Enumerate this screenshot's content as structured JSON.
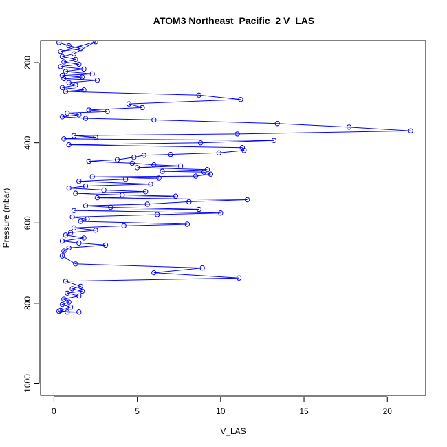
{
  "chart_data": {
    "type": "scatter",
    "title": "ATOM3 Northeast_Pacific_2 V_LAS",
    "xlabel": "V_LAS",
    "ylabel": "Pressure (mbar)",
    "xlim": [
      -0.8,
      22.3
    ],
    "ylim": [
      1030,
      145
    ],
    "y_reversed": true,
    "x_ticks": [
      0,
      5,
      10,
      15,
      20
    ],
    "y_ticks": [
      200,
      400,
      600,
      800,
      1000
    ],
    "grid": false,
    "point_style": "open-circle-with-connecting-line",
    "color": "#0000ff",
    "series": [
      {
        "values": [
          [
            0.3,
            150
          ],
          [
            0.9,
            158
          ],
          [
            1.6,
            165
          ],
          [
            0.4,
            172
          ],
          [
            2.5,
            148
          ],
          [
            1.2,
            178
          ],
          [
            0.5,
            185
          ],
          [
            1.3,
            192
          ],
          [
            0.6,
            198
          ],
          [
            1.5,
            204
          ],
          [
            0.4,
            210
          ],
          [
            1.8,
            216
          ],
          [
            0.7,
            222
          ],
          [
            2.3,
            228
          ],
          [
            0.5,
            232
          ],
          [
            1.7,
            236
          ],
          [
            0.6,
            240
          ],
          [
            2.6,
            244
          ],
          [
            0.9,
            250
          ],
          [
            1.3,
            256
          ],
          [
            0.5,
            262
          ],
          [
            1.8,
            268
          ],
          [
            0.7,
            272
          ],
          [
            8.7,
            281
          ],
          [
            11.2,
            292
          ],
          [
            4.5,
            303
          ],
          [
            5.3,
            312
          ],
          [
            2.1,
            318
          ],
          [
            3.2,
            322
          ],
          [
            0.8,
            326
          ],
          [
            1.5,
            330
          ],
          [
            0.5,
            335
          ],
          [
            1.9,
            339
          ],
          [
            6.0,
            343
          ],
          [
            13.4,
            352
          ],
          [
            17.7,
            361
          ],
          [
            21.4,
            370
          ],
          [
            11.0,
            378
          ],
          [
            1.2,
            382
          ],
          [
            2.5,
            386
          ],
          [
            0.6,
            390
          ],
          [
            13.2,
            394
          ],
          [
            8.8,
            400
          ],
          [
            0.9,
            405
          ],
          [
            11.3,
            412
          ],
          [
            11.4,
            419
          ],
          [
            9.9,
            425
          ],
          [
            7.0,
            429
          ],
          [
            5.4,
            431
          ],
          [
            4.8,
            436
          ],
          [
            3.8,
            442
          ],
          [
            2.1,
            446
          ],
          [
            4.7,
            451
          ],
          [
            6.0,
            455
          ],
          [
            7.6,
            458
          ],
          [
            5.0,
            462
          ],
          [
            9.2,
            467
          ],
          [
            6.5,
            471
          ],
          [
            9.0,
            473
          ],
          [
            9.4,
            478
          ],
          [
            8.5,
            483
          ],
          [
            2.3,
            485
          ],
          [
            6.3,
            488
          ],
          [
            4.3,
            491
          ],
          [
            1.5,
            496
          ],
          [
            5.8,
            503
          ],
          [
            1.9,
            508
          ],
          [
            0.9,
            513
          ],
          [
            3.0,
            518
          ],
          [
            5.5,
            522
          ],
          [
            1.3,
            526
          ],
          [
            4.1,
            530
          ],
          [
            7.3,
            533
          ],
          [
            2.6,
            537
          ],
          [
            11.6,
            542
          ],
          [
            8.1,
            547
          ],
          [
            5.6,
            553
          ],
          [
            1.9,
            557
          ],
          [
            3.4,
            561
          ],
          [
            8.7,
            566
          ],
          [
            1.2,
            569
          ],
          [
            10.0,
            575
          ],
          [
            6.2,
            579
          ],
          [
            1.1,
            585
          ],
          [
            2.0,
            590
          ],
          [
            1.6,
            596
          ],
          [
            8.0,
            603
          ],
          [
            4.2,
            607
          ],
          [
            1.2,
            612
          ],
          [
            2.5,
            618
          ],
          [
            1.0,
            624
          ],
          [
            0.7,
            630
          ],
          [
            1.8,
            637
          ],
          [
            0.5,
            645
          ],
          [
            1.5,
            650
          ],
          [
            3.1,
            655
          ],
          [
            0.9,
            662
          ],
          [
            0.6,
            670
          ],
          [
            0.5,
            682
          ],
          [
            1.3,
            702
          ],
          [
            8.9,
            712
          ],
          [
            6.0,
            724
          ],
          [
            11.1,
            737
          ],
          [
            0.7,
            745
          ],
          [
            1.6,
            758
          ],
          [
            1.1,
            764
          ],
          [
            1.7,
            770
          ],
          [
            0.8,
            775
          ],
          [
            1.5,
            782
          ],
          [
            0.6,
            790
          ],
          [
            0.9,
            797
          ],
          [
            0.5,
            803
          ],
          [
            1.0,
            810
          ],
          [
            0.4,
            818
          ],
          [
            0.8,
            822
          ],
          [
            1.5,
            822
          ],
          [
            0.3,
            820
          ]
        ]
      }
    ]
  }
}
